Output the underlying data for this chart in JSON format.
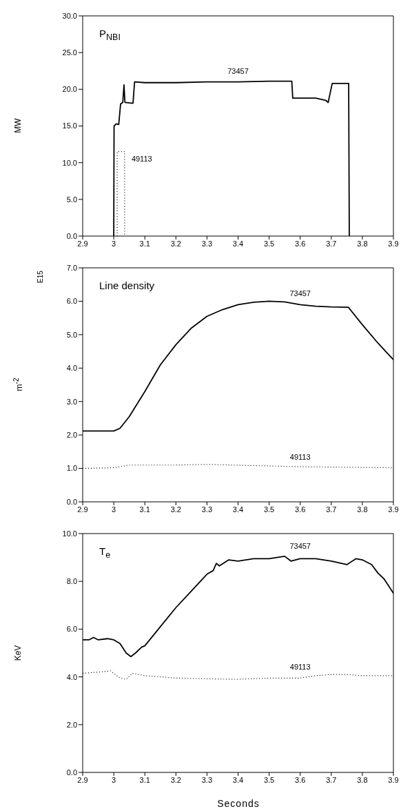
{
  "chart_data": [
    {
      "type": "line",
      "title": "P$_{NBI}$",
      "ylabel": "MW",
      "marker": "none",
      "xlim": [
        2.9,
        3.9
      ],
      "xticks": [
        2.9,
        3.0,
        3.1,
        3.2,
        3.3,
        3.4,
        3.5,
        3.6,
        3.7,
        3.8,
        3.9
      ],
      "ylim": [
        0,
        30
      ],
      "yticks": [
        {
          "value": 0,
          "label": "0.0"
        },
        {
          "value": 5,
          "label": "5.0"
        },
        {
          "value": 10,
          "label": "10.0"
        },
        {
          "value": 15,
          "label": "15.0"
        },
        {
          "value": 20,
          "label": "20.0"
        },
        {
          "value": 25,
          "label": "25.0"
        },
        {
          "value": 30,
          "label": "30.0"
        }
      ],
      "series": [
        {
          "name": "73457",
          "color": "#000000",
          "line_style": "solid",
          "x": [
            3.0,
            3.001,
            3.008,
            3.016,
            3.022,
            3.029,
            3.033,
            3.036,
            3.062,
            3.067,
            3.1,
            3.2,
            3.3,
            3.4,
            3.5,
            3.573,
            3.576,
            3.65,
            3.682,
            3.69,
            3.703,
            3.756,
            3.758
          ],
          "values": [
            0,
            15.0,
            15.3,
            15.2,
            18.0,
            18.2,
            20.6,
            18.2,
            18.1,
            21.0,
            20.9,
            20.9,
            21.0,
            21.0,
            21.1,
            21.1,
            18.8,
            18.8,
            18.5,
            18.2,
            20.8,
            20.8,
            0
          ]
        },
        {
          "name": "49113",
          "color": "#000000",
          "line_style": "dotted",
          "x": [
            3.011,
            3.011,
            3.035,
            3.035
          ],
          "values": [
            0,
            11.5,
            11.5,
            0
          ]
        }
      ]
    },
    {
      "type": "line",
      "title": "Line density",
      "ylabel": "m$^{-2}$",
      "annotations": [
        "E15"
      ],
      "marker": "none",
      "xlim": [
        2.9,
        3.9
      ],
      "xticks": [
        2.9,
        3.0,
        3.1,
        3.2,
        3.3,
        3.4,
        3.5,
        3.6,
        3.7,
        3.8,
        3.9
      ],
      "ylim": [
        0,
        7
      ],
      "yticks": [
        {
          "value": 0,
          "label": "0.0"
        },
        {
          "value": 1,
          "label": "1.0"
        },
        {
          "value": 2,
          "label": "2.0"
        },
        {
          "value": 3,
          "label": "3.0"
        },
        {
          "value": 4,
          "label": "4.0"
        },
        {
          "value": 5,
          "label": "5.0"
        },
        {
          "value": 6,
          "label": "6.0"
        },
        {
          "value": 7,
          "label": "7.0"
        }
      ],
      "series": [
        {
          "name": "73457",
          "color": "#000000",
          "line_style": "solid",
          "x": [
            2.9,
            3.0,
            3.02,
            3.05,
            3.1,
            3.15,
            3.2,
            3.25,
            3.3,
            3.35,
            3.4,
            3.45,
            3.5,
            3.55,
            3.6,
            3.65,
            3.7,
            3.755,
            3.8,
            3.85,
            3.9
          ],
          "values": [
            2.12,
            2.12,
            2.2,
            2.55,
            3.3,
            4.1,
            4.7,
            5.2,
            5.55,
            5.75,
            5.9,
            5.97,
            6.0,
            5.98,
            5.9,
            5.85,
            5.83,
            5.82,
            5.3,
            4.75,
            4.25
          ]
        },
        {
          "name": "49113",
          "color": "#000000",
          "line_style": "dotted",
          "x": [
            2.9,
            3.0,
            3.05,
            3.2,
            3.3,
            3.6,
            3.9
          ],
          "values": [
            1.0,
            1.02,
            1.1,
            1.1,
            1.12,
            1.05,
            1.02
          ]
        }
      ]
    },
    {
      "type": "line",
      "title": "T$_{e}$",
      "ylabel": "KeV",
      "xlabel": "Seconds",
      "marker": "none",
      "xlim": [
        2.9,
        3.9
      ],
      "xticks": [
        2.9,
        3.0,
        3.1,
        3.2,
        3.3,
        3.4,
        3.5,
        3.6,
        3.7,
        3.8,
        3.9
      ],
      "ylim": [
        0,
        10
      ],
      "yticks": [
        {
          "value": 0,
          "label": "0.0"
        },
        {
          "value": 2,
          "label": "2.0"
        },
        {
          "value": 4,
          "label": "4.0"
        },
        {
          "value": 6,
          "label": "6.0"
        },
        {
          "value": 8,
          "label": "8.0"
        },
        {
          "value": 10,
          "label": "10.0"
        }
      ],
      "series": [
        {
          "name": "73457",
          "color": "#000000",
          "line_style": "solid",
          "x": [
            2.9,
            2.92,
            2.935,
            2.95,
            2.98,
            3.0,
            3.02,
            3.04,
            3.055,
            3.07,
            3.09,
            3.1,
            3.15,
            3.2,
            3.25,
            3.3,
            3.32,
            3.33,
            3.34,
            3.37,
            3.4,
            3.45,
            3.5,
            3.55,
            3.57,
            3.6,
            3.65,
            3.7,
            3.75,
            3.78,
            3.8,
            3.83,
            3.85,
            3.87,
            3.89,
            3.9
          ],
          "values": [
            5.55,
            5.55,
            5.65,
            5.55,
            5.6,
            5.55,
            5.4,
            5.0,
            4.85,
            5.0,
            5.25,
            5.3,
            6.1,
            6.9,
            7.6,
            8.3,
            8.45,
            8.75,
            8.65,
            8.9,
            8.85,
            8.95,
            8.95,
            9.05,
            8.85,
            8.95,
            8.95,
            8.85,
            8.7,
            8.95,
            8.9,
            8.7,
            8.35,
            8.1,
            7.7,
            7.5
          ]
        },
        {
          "name": "49113",
          "color": "#000000",
          "line_style": "dotted",
          "x": [
            2.9,
            2.95,
            2.99,
            3.02,
            3.04,
            3.06,
            3.1,
            3.2,
            3.3,
            3.4,
            3.5,
            3.55,
            3.6,
            3.65,
            3.7,
            3.75,
            3.8,
            3.9
          ],
          "values": [
            4.15,
            4.2,
            4.25,
            3.95,
            3.9,
            4.15,
            4.05,
            3.95,
            3.92,
            3.9,
            3.95,
            3.95,
            3.95,
            4.05,
            4.1,
            4.1,
            4.05,
            4.05
          ]
        }
      ]
    }
  ]
}
